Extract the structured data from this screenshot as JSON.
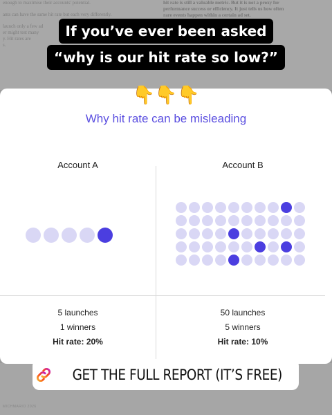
{
  "background_doc": {
    "left_lines": [
      "enough to maximise their accounts' potential.",
      "ants can have the same hit rate but each very differently.",
      "launch only a few ad",
      "er might test many",
      "y. Hit rates are",
      "s."
    ],
    "right_lines": [
      "hit rate is still a valuable metric. But it is not a proxy for",
      "performance success or efficiency. It just tells us how often",
      "rare events happen within a certain ad set."
    ],
    "footer": "MICHMARIO 2026"
  },
  "headline": "If you’ve ever been asked “why is our hit rate so low?”",
  "emoji": "👇👇👇",
  "subtitle": "Why hit rate can be misleading",
  "accounts": [
    {
      "name": "Account A",
      "launches_label": "5 launches",
      "winners_label": "1 winners",
      "hit_rate_label": "Hit rate: 20%",
      "launches": 5,
      "winners": 1,
      "winner_indices": [
        4
      ]
    },
    {
      "name": "Account B",
      "launches_label": "50 launches",
      "winners_label": "5 winners",
      "hit_rate_label": "Hit rate: 10%",
      "launches": 50,
      "winners": 5,
      "winner_indices": [
        8,
        24,
        36,
        38,
        44
      ]
    }
  ],
  "colors": {
    "accent": "#5b4fe0",
    "winner_dot": "#4b3ee0",
    "launch_dot": "#d9d7f5"
  },
  "cta": {
    "icon": "link-icon",
    "label": "GET THE FULL REPORT (IT’S FREE)"
  }
}
